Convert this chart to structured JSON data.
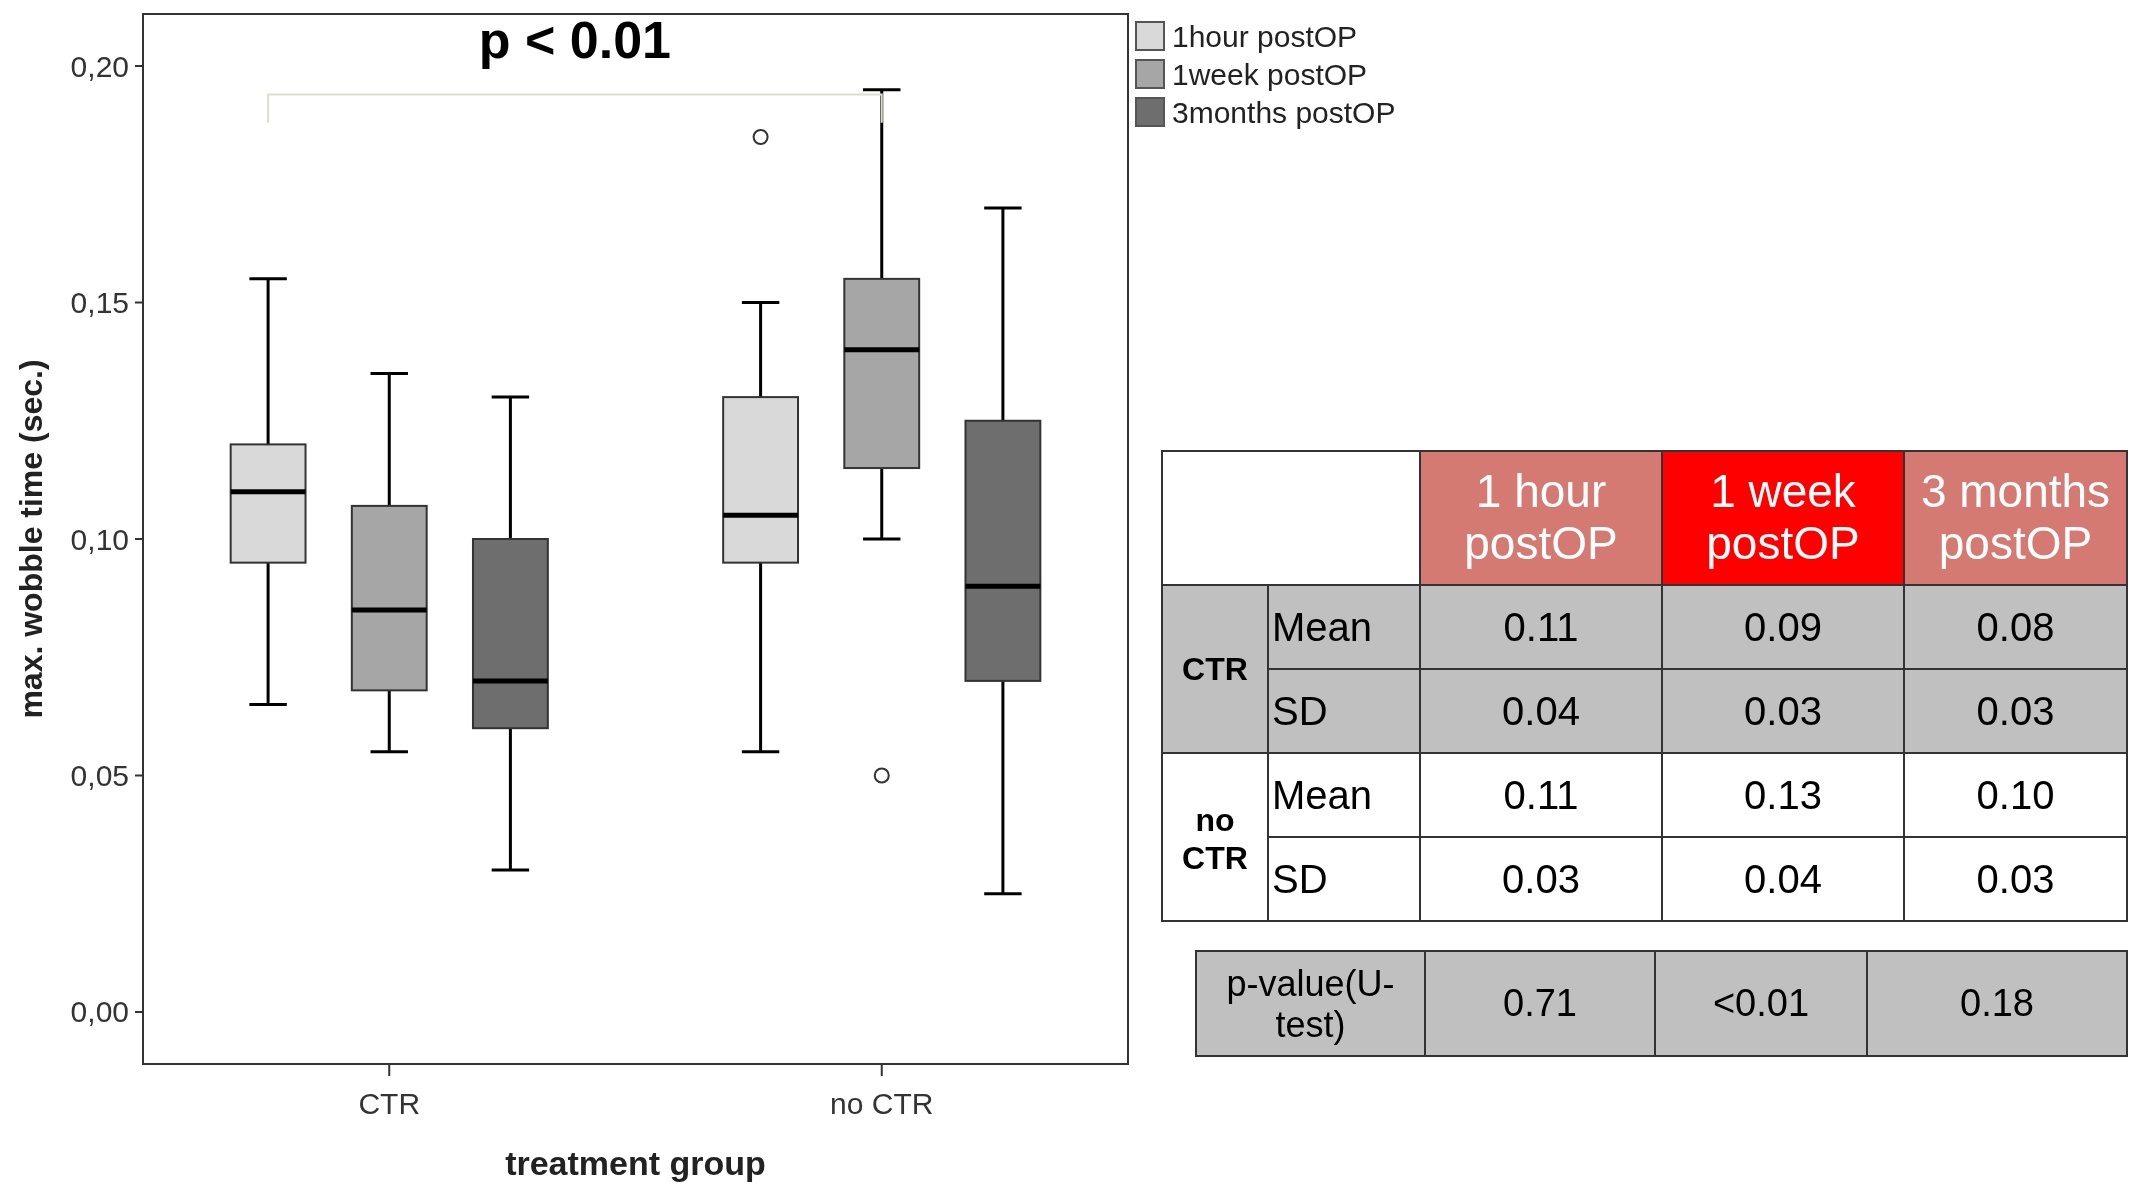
{
  "chart_data": [
    {
      "type": "box",
      "ylabel": "max. wobble time (sec.)",
      "xlabel": "treatment group",
      "categories": [
        "CTR",
        "no CTR"
      ],
      "ylim": [
        -0.011,
        0.211
      ],
      "yticks": [
        {
          "value": 0,
          "label": "0,00"
        },
        {
          "value": 0.05,
          "label": "0,05"
        },
        {
          "value": 0.1,
          "label": "0,10"
        },
        {
          "value": 0.15,
          "label": "0,15"
        },
        {
          "value": 0.2,
          "label": "0,20"
        }
      ],
      "legend": "top right",
      "grid": false,
      "annotations": [
        "p < 0.01"
      ],
      "series": [
        {
          "name": "1hour postOP",
          "color": "#d9d9d9",
          "boxes": [
            {
              "low": 0.065,
              "q1": 0.095,
              "median": 0.11,
              "q3": 0.12,
              "high": 0.155
            },
            {
              "low": 0.055,
              "q1": 0.095,
              "median": 0.105,
              "q3": 0.13,
              "high": 0.15,
              "outliers": [
                0.185
              ]
            }
          ]
        },
        {
          "name": "1week postOP",
          "color": "#a6a6a6",
          "boxes": [
            {
              "low": 0.055,
              "q1": 0.068,
              "median": 0.085,
              "q3": 0.107,
              "high": 0.135
            },
            {
              "low": 0.1,
              "q1": 0.115,
              "median": 0.14,
              "q3": 0.155,
              "high": 0.195,
              "outliers": [
                0.05
              ]
            }
          ]
        },
        {
          "name": "3months postOP",
          "color": "#6e6e6e",
          "boxes": [
            {
              "low": 0.03,
              "q1": 0.06,
              "median": 0.07,
              "q3": 0.1,
              "high": 0.13
            },
            {
              "low": 0.025,
              "q1": 0.07,
              "median": 0.09,
              "q3": 0.125,
              "high": 0.17
            }
          ]
        }
      ]
    },
    {
      "type": "other",
      "categories": [
        "1 hour postOP",
        "1 week postOP",
        "3 months postOP"
      ],
      "colors": [
        "#d47a72",
        "#ff0000",
        "#d47a72"
      ],
      "y_categories": [
        "Mean",
        "SD",
        "Mean",
        "SD",
        "p-value(U-test)"
      ],
      "annotations": [
        "CTR",
        "no CTR"
      ],
      "cell_labels": [
        [
          "0.11",
          "0.09",
          "0.08"
        ],
        [
          "0.04",
          "0.03",
          "0.03"
        ],
        [
          "0.11",
          "0.13",
          "0.10"
        ],
        [
          "0.03",
          "0.04",
          "0.03"
        ],
        [
          "0.71",
          "<0.01",
          "0.18"
        ]
      ]
    }
  ]
}
